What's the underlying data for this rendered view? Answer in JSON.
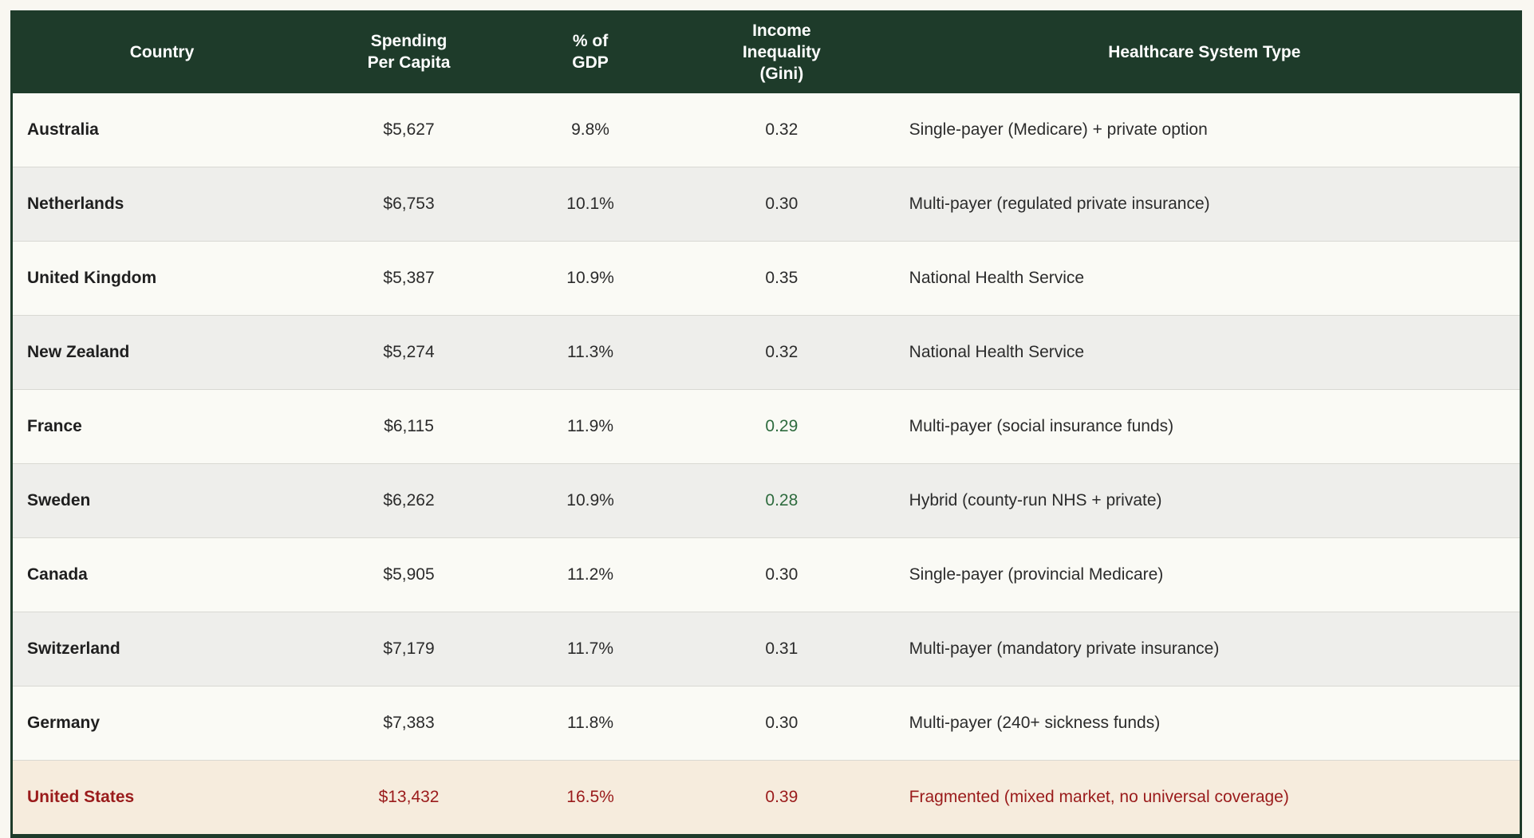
{
  "colors": {
    "page_background": "#f9f7f1",
    "header_bg": "#1e3b2a",
    "header_text": "#ffffff",
    "row_odd_bg": "#fafaf5",
    "row_even_bg": "#eeeeeb",
    "highlight_row_bg": "#f6ecdd",
    "highlight_text": "#9a1b1b",
    "gini_good_text": "#2e6b3e",
    "body_text": "#2b2b2b",
    "divider": "#d9d9d3",
    "table_border": "#1e3b2a"
  },
  "chart_data": {
    "type": "table",
    "columns": [
      {
        "id": "country",
        "label": "Country"
      },
      {
        "id": "spending",
        "label": "Spending\nPer Capita"
      },
      {
        "id": "gdp",
        "label": "% of\nGDP"
      },
      {
        "id": "gini",
        "label": "Income\nInequality\n(Gini)"
      },
      {
        "id": "system",
        "label": "Healthcare System Type"
      }
    ],
    "rows": [
      {
        "country": "Australia",
        "spending": "$5,627",
        "gdp": "9.8%",
        "gini": "0.32",
        "system": "Single-payer (Medicare) + private option",
        "gini_good": false,
        "highlight": false
      },
      {
        "country": "Netherlands",
        "spending": "$6,753",
        "gdp": "10.1%",
        "gini": "0.30",
        "system": "Multi-payer (regulated private insurance)",
        "gini_good": false,
        "highlight": false
      },
      {
        "country": "United Kingdom",
        "spending": "$5,387",
        "gdp": "10.9%",
        "gini": "0.35",
        "system": "National Health Service",
        "gini_good": false,
        "highlight": false
      },
      {
        "country": "New Zealand",
        "spending": "$5,274",
        "gdp": "11.3%",
        "gini": "0.32",
        "system": "National Health Service",
        "gini_good": false,
        "highlight": false
      },
      {
        "country": "France",
        "spending": "$6,115",
        "gdp": "11.9%",
        "gini": "0.29",
        "system": "Multi-payer (social insurance funds)",
        "gini_good": true,
        "highlight": false
      },
      {
        "country": "Sweden",
        "spending": "$6,262",
        "gdp": "10.9%",
        "gini": "0.28",
        "system": "Hybrid (county-run NHS + private)",
        "gini_good": true,
        "highlight": false
      },
      {
        "country": "Canada",
        "spending": "$5,905",
        "gdp": "11.2%",
        "gini": "0.30",
        "system": "Single-payer (provincial Medicare)",
        "gini_good": false,
        "highlight": false
      },
      {
        "country": "Switzerland",
        "spending": "$7,179",
        "gdp": "11.7%",
        "gini": "0.31",
        "system": "Multi-payer (mandatory private insurance)",
        "gini_good": false,
        "highlight": false
      },
      {
        "country": "Germany",
        "spending": "$7,383",
        "gdp": "11.8%",
        "gini": "0.30",
        "system": "Multi-payer (240+ sickness funds)",
        "gini_good": false,
        "highlight": false
      },
      {
        "country": "United States",
        "spending": "$13,432",
        "gdp": "16.5%",
        "gini": "0.39",
        "system": "Fragmented (mixed market, no universal coverage)",
        "gini_good": false,
        "highlight": true
      }
    ]
  }
}
